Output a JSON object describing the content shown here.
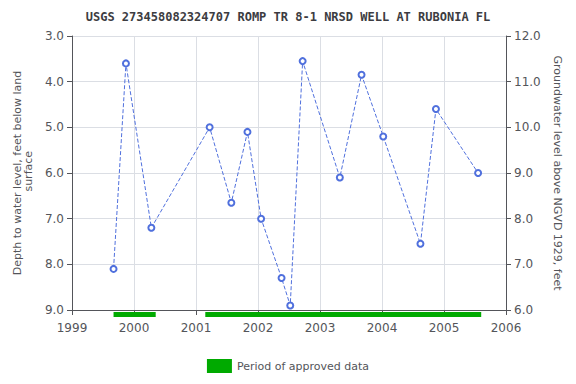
{
  "chart_data": {
    "type": "line",
    "title": "USGS 273458082324707 ROMP TR 8-1 NRSD WELL AT RUBONIA FL",
    "ylabel": "Depth to water level, feet below land\n surface",
    "y2label": "Groundwater level above NGVD 1929, feet",
    "x": [
      1999.67,
      1999.87,
      2000.28,
      2001.22,
      2001.57,
      2001.83,
      2002.05,
      2002.38,
      2002.52,
      2002.72,
      2003.32,
      2003.67,
      2004.02,
      2004.62,
      2004.87,
      2005.55
    ],
    "values": [
      8.1,
      3.6,
      7.2,
      5.0,
      6.65,
      5.1,
      7.0,
      8.3,
      8.9,
      3.55,
      6.1,
      3.85,
      5.2,
      7.55,
      4.6,
      6.0
    ],
    "xlim": [
      1999,
      2006
    ],
    "xticks": [
      1999,
      2000,
      2001,
      2002,
      2003,
      2004,
      2005,
      2006
    ],
    "ylim": [
      9.0,
      3.0
    ],
    "yticks": [
      {
        "value": 3,
        "label": "3.0"
      },
      {
        "value": 4,
        "label": "4.0"
      },
      {
        "value": 5,
        "label": "5.0"
      },
      {
        "value": 6,
        "label": "6.0"
      },
      {
        "value": 7,
        "label": "7.0"
      },
      {
        "value": 8,
        "label": "8.0"
      },
      {
        "value": 9,
        "label": "9.0"
      }
    ],
    "y2lim": [
      6.0,
      12.0
    ],
    "y2ticks": [
      {
        "value": 6,
        "label": "6.0"
      },
      {
        "value": 7,
        "label": "7.0"
      },
      {
        "value": 8,
        "label": "8.0"
      },
      {
        "value": 9,
        "label": "9.0"
      },
      {
        "value": 10,
        "label": "10.0"
      },
      {
        "value": 11,
        "label": "11.0"
      },
      {
        "value": 12,
        "label": "12.0"
      }
    ],
    "marker": "circle",
    "line_style": "dashed",
    "grid": true,
    "legend": "bottom",
    "approved": {
      "name": "Period of approved data",
      "color": "#00aa00",
      "segments": [
        [
          1999.67,
          2000.35
        ],
        [
          2001.15,
          2005.6
        ]
      ]
    }
  }
}
